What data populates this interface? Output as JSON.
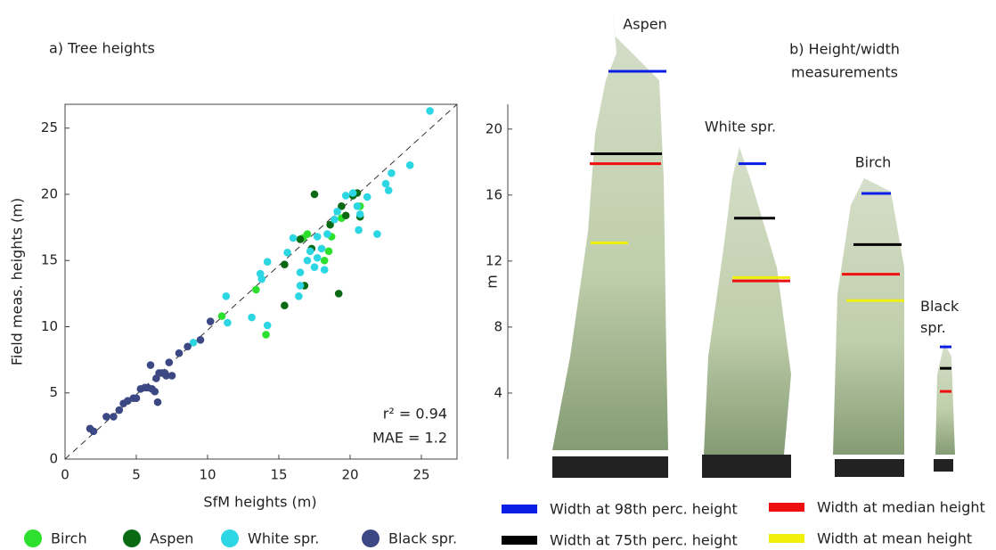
{
  "chart_data": [
    {
      "type": "scatter",
      "title": "a)  Tree heights",
      "x_label": "SfM heights (m)",
      "y_label": "Field meas. heights (m)",
      "xlim": [
        0,
        27.5
      ],
      "ylim": [
        0,
        26.8
      ],
      "xticks": [
        0,
        5,
        10,
        15,
        20,
        25
      ],
      "yticks": [
        0,
        5,
        10,
        15,
        20,
        25
      ],
      "annotations": [
        "r² = 0.94",
        "MAE = 1.2"
      ],
      "series": [
        {
          "name": "Birch",
          "color": "#2ee02e",
          "x": [
            11.0,
            13.4,
            14.1,
            16.7,
            17.0,
            18.2,
            18.5,
            19.4,
            20.7,
            18.7
          ],
          "values": [
            10.8,
            12.8,
            9.4,
            16.7,
            17.0,
            15.0,
            15.7,
            18.2,
            19.1,
            16.8
          ]
        },
        {
          "name": "Aspen",
          "color": "#0a6a14",
          "x": [
            15.4,
            15.4,
            16.8,
            16.5,
            17.5,
            17.3,
            18.6,
            19.2,
            19.4,
            20.2,
            20.5,
            19.7,
            20.7
          ],
          "values": [
            14.7,
            11.6,
            13.1,
            16.6,
            20.0,
            15.9,
            17.7,
            12.5,
            19.1,
            19.9,
            20.1,
            18.4,
            18.3
          ]
        },
        {
          "name": "White spr.",
          "color": "#2cd6e2",
          "x": [
            9.0,
            11.3,
            11.4,
            13.1,
            14.2,
            13.7,
            13.8,
            14.2,
            15.6,
            16.0,
            16.5,
            16.5,
            16.4,
            17.2,
            17.7,
            18.0,
            17.7,
            17.5,
            18.2,
            18.4,
            18.9,
            19.1,
            19.7,
            20.2,
            20.5,
            20.7,
            20.6,
            21.2,
            21.9,
            22.5,
            22.7,
            22.9,
            24.2,
            25.6,
            17.0
          ],
          "values": [
            8.8,
            12.3,
            10.3,
            10.7,
            10.1,
            14.0,
            13.6,
            14.9,
            15.6,
            16.7,
            14.1,
            13.1,
            12.3,
            15.7,
            16.8,
            15.9,
            15.2,
            14.5,
            14.3,
            17.0,
            18.1,
            18.7,
            19.9,
            20.1,
            19.1,
            18.5,
            17.3,
            19.8,
            17.0,
            20.8,
            20.3,
            21.6,
            22.2,
            26.3,
            15.0
          ]
        },
        {
          "name": "Black spr.",
          "color": "#3b4883",
          "x": [
            1.75,
            2.0,
            2.9,
            3.4,
            3.8,
            4.1,
            4.4,
            4.8,
            5.0,
            5.3,
            5.6,
            5.8,
            6.1,
            6.3,
            6.4,
            6.6,
            6.8,
            7.0,
            7.1,
            7.3,
            7.5,
            6.5,
            8.0,
            8.6,
            9.5,
            10.2,
            6.0
          ],
          "values": [
            2.3,
            2.1,
            3.2,
            3.2,
            3.7,
            4.2,
            4.4,
            4.6,
            4.6,
            5.3,
            5.4,
            5.4,
            5.3,
            5.1,
            6.1,
            6.5,
            6.5,
            6.5,
            6.3,
            7.3,
            6.3,
            4.3,
            8.0,
            8.5,
            9.0,
            10.4,
            7.1
          ]
        }
      ]
    },
    {
      "type": "measurement",
      "title": [
        "b)  Height/width",
        "measurements"
      ],
      "y_label": "m",
      "ylim": [
        0,
        21.5
      ],
      "yticks": [
        4,
        8,
        12,
        16,
        20
      ],
      "categories": [
        "Aspen",
        "White spr.",
        "Birch",
        "Black spr."
      ],
      "series": [
        {
          "name": "Width at 98th perc. height",
          "color": "#0a1ee6",
          "values": [
            23.5,
            17.9,
            16.1,
            6.8
          ]
        },
        {
          "name": "Width at 75th perc. height",
          "color": "#000000",
          "values": [
            18.5,
            14.6,
            13.0,
            5.5
          ]
        },
        {
          "name": "Width at median height",
          "color": "#ee1010",
          "values": [
            17.9,
            10.8,
            11.2,
            4.1
          ]
        },
        {
          "name": "Width at mean height",
          "color": "#f0f00a",
          "values": [
            13.1,
            11.0,
            9.6,
            null
          ]
        }
      ]
    }
  ]
}
